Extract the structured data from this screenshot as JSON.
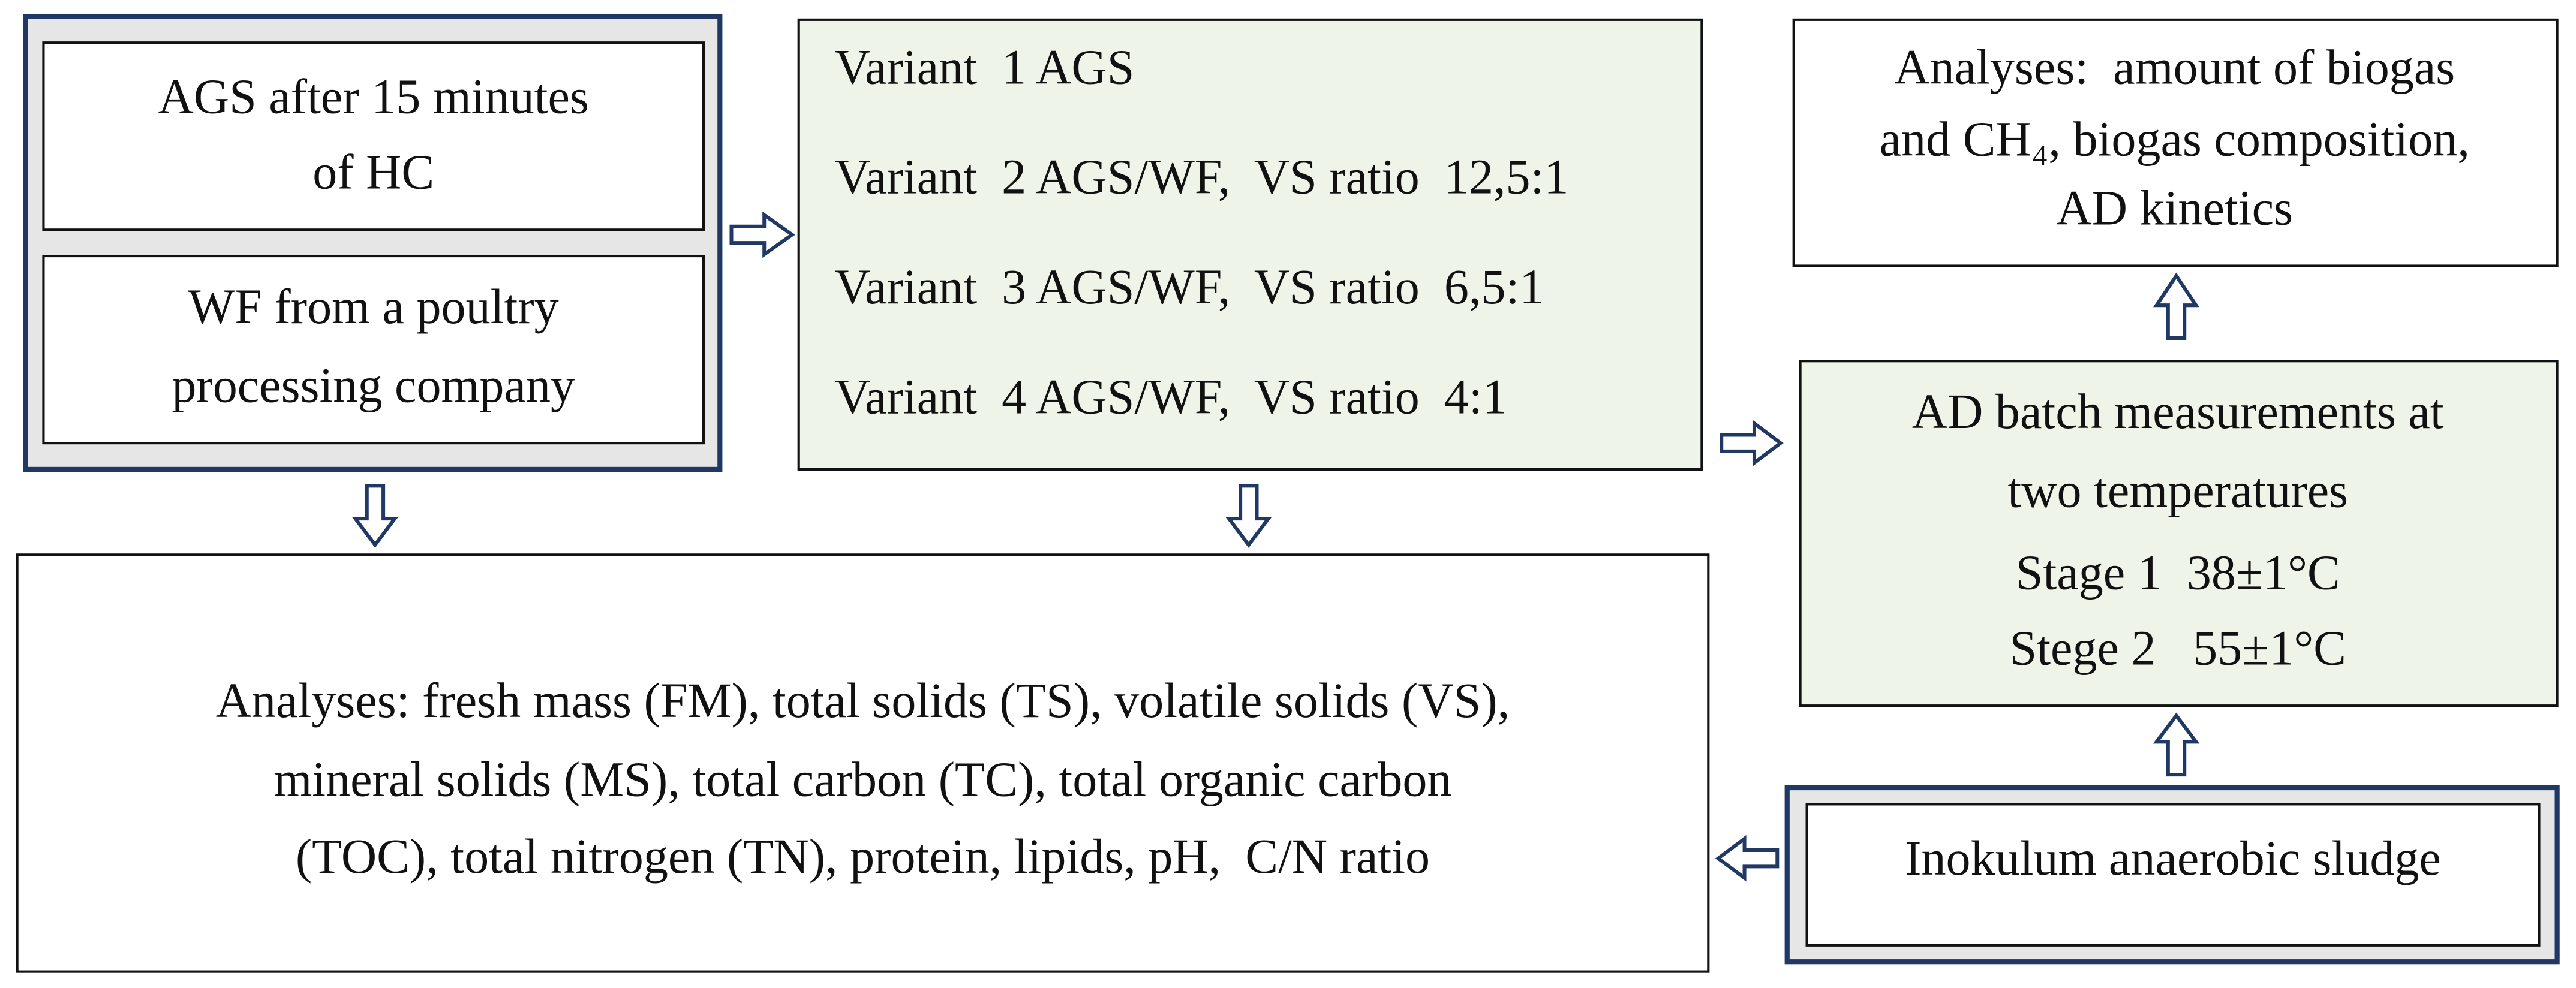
{
  "nodes": [
    {
      "lines": [
        "AGS after 15 minutes",
        "of HC"
      ]
    },
    {
      "lines": [
        "WF from a poultry",
        "processing company"
      ]
    },
    {
      "lines": [
        "Variant  1 AGS",
        "Variant  2 AGS/WF,  VS ratio  12,5:1",
        "Variant  3 AGS/WF,  VS ratio  6,5:1",
        "Variant  4 AGS/WF,  VS ratio  4:1"
      ]
    },
    {
      "lines": [
        "Analyses:  amount of biogas",
        "and CH₄, biogas composition,",
        "AD kinetics"
      ]
    },
    {
      "lines": [
        "AD batch measurements at",
        "two temperatures",
        "Stage 1  38±1°C",
        "Stege 2   55±1°C"
      ]
    },
    {
      "lines": [
        "Inokulum anaerobic sludge"
      ]
    },
    {
      "lines": [
        "Analyses: fresh mass (FM), total solids (TS), volatile solids (VS),",
        "mineral solids (MS), total carbon (TC), total organic carbon",
        "(TOC), total nitrogen (TN), protein, lipids, pH,  C/N ratio"
      ]
    }
  ]
}
